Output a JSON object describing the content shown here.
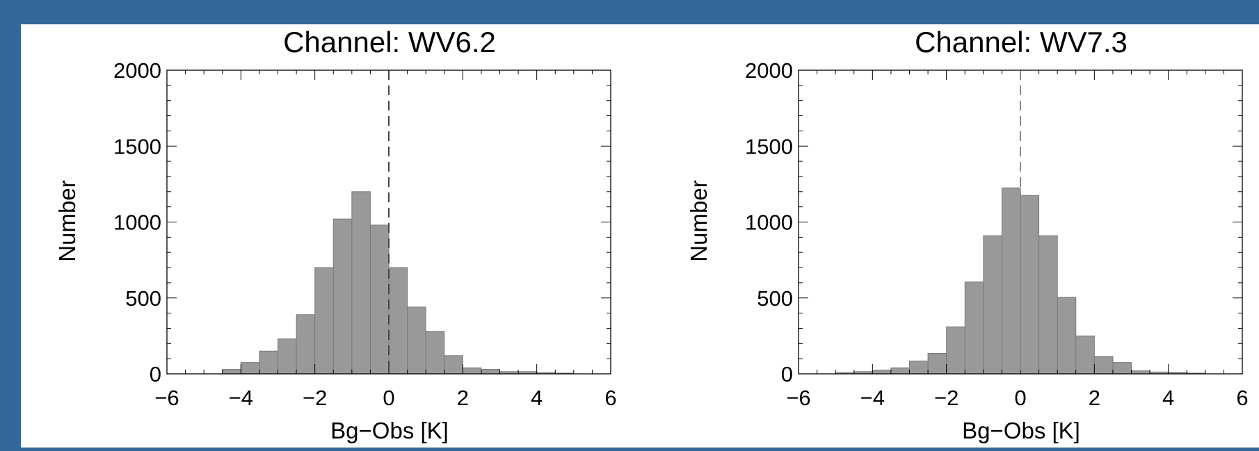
{
  "chart_data": [
    {
      "type": "bar",
      "title": "Channel: WV6.2",
      "xlabel": "Bg−Obs [K]",
      "ylabel": "Number",
      "xlim": [
        -6,
        6
      ],
      "ylim": [
        0,
        2000
      ],
      "xticks": [
        "−6",
        "−4",
        "−2",
        "0",
        "2",
        "4",
        "6"
      ],
      "yticks": [
        "0",
        "500",
        "1000",
        "1500",
        "2000"
      ],
      "bin_width": 0.5,
      "bin_starts": [
        -5.0,
        -4.5,
        -4.0,
        -3.5,
        -3.0,
        -2.5,
        -2.0,
        -1.5,
        -1.0,
        -0.5,
        0.0,
        0.5,
        1.0,
        1.5,
        2.0,
        2.5,
        3.0,
        3.5,
        4.0,
        4.5,
        5.0
      ],
      "values": [
        0,
        30,
        75,
        150,
        230,
        390,
        700,
        1020,
        1200,
        980,
        700,
        440,
        280,
        120,
        40,
        30,
        15,
        15,
        8,
        5,
        0
      ],
      "reference_line": {
        "x": 0,
        "style": "dashed",
        "color": "#444444"
      },
      "bar_color": "#999999",
      "grid": false
    },
    {
      "type": "bar",
      "title": "Channel: WV7.3",
      "xlabel": "Bg−Obs [K]",
      "ylabel": "Number",
      "xlim": [
        -6,
        6
      ],
      "ylim": [
        0,
        2000
      ],
      "xticks": [
        "−6",
        "−4",
        "−2",
        "0",
        "2",
        "4",
        "6"
      ],
      "yticks": [
        "0",
        "500",
        "1000",
        "1500",
        "2000"
      ],
      "bin_width": 0.5,
      "bin_starts": [
        -5.5,
        -5.0,
        -4.5,
        -4.0,
        -3.5,
        -3.0,
        -2.5,
        -2.0,
        -1.5,
        -1.0,
        -0.5,
        0.0,
        0.5,
        1.0,
        1.5,
        2.0,
        2.5,
        3.0,
        3.5,
        4.0,
        4.5
      ],
      "values": [
        0,
        8,
        15,
        25,
        40,
        85,
        135,
        310,
        605,
        910,
        1225,
        1175,
        910,
        505,
        250,
        115,
        75,
        20,
        12,
        10,
        5
      ],
      "reference_line": {
        "x": 0,
        "style": "dashed",
        "color": "#888888"
      },
      "bar_color": "#999999",
      "grid": false
    }
  ],
  "colors": {
    "background": "#336699",
    "panel": "#ffffff"
  }
}
